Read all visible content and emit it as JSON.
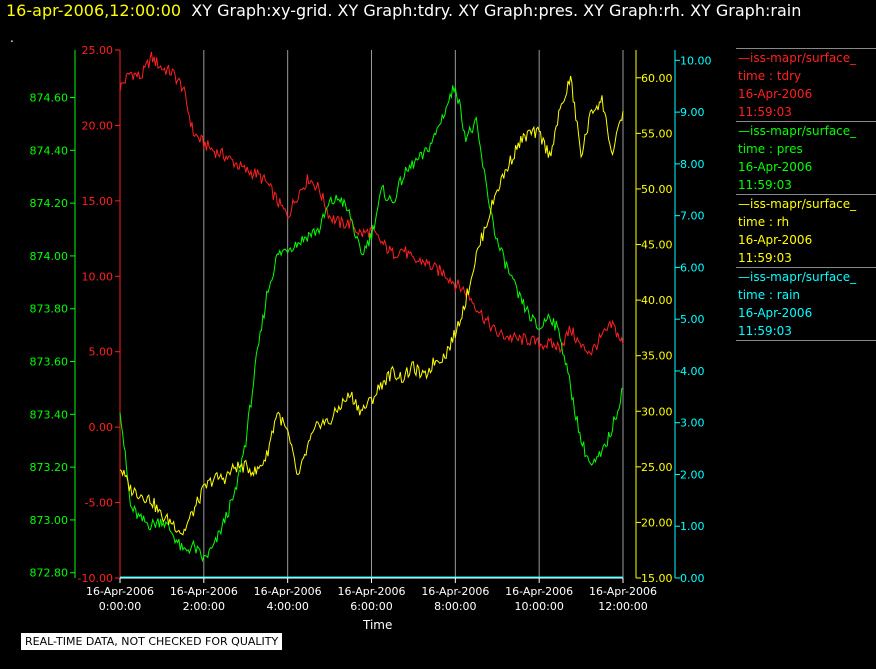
{
  "header": {
    "date": "16-apr-2006,12:00:00",
    "graphs": "XY Graph:xy-grid.  XY Graph:tdry.  XY Graph:pres.  XY Graph:rh.  XY Graph:rain",
    "dot": "."
  },
  "footer": {
    "x_label": "Time",
    "qc_note": "REAL-TIME DATA, NOT CHECKED FOR QUALITY"
  },
  "legend": [
    {
      "name": "—iss-mapr/surface_",
      "field": "time : tdry",
      "date": "16-Apr-2006",
      "time": "11:59:03",
      "color": "#ff2020"
    },
    {
      "name": "—iss-mapr/surface_",
      "field": "time : pres",
      "date": "16-Apr-2006",
      "time": "11:59:03",
      "color": "#00ff00"
    },
    {
      "name": "—iss-mapr/surface_",
      "field": "time : rh",
      "date": "16-Apr-2006",
      "time": "11:59:03",
      "color": "#ffff00"
    },
    {
      "name": "—iss-mapr/surface_",
      "field": "time : rain",
      "date": "16-Apr-2006",
      "time": "11:59:03",
      "color": "#00ffff"
    }
  ],
  "chart_data": {
    "type": "line",
    "xlabel": "Time",
    "x_tick_labels": [
      [
        "16-Apr-2006",
        "0:00:00"
      ],
      [
        "16-Apr-2006",
        "2:00:00"
      ],
      [
        "16-Apr-2006",
        "4:00:00"
      ],
      [
        "16-Apr-2006",
        "6:00:00"
      ],
      [
        "16-Apr-2006",
        "8:00:00"
      ],
      [
        "16-Apr-2006",
        "10:00:00"
      ],
      [
        "16-Apr-2006",
        "12:00:00"
      ]
    ],
    "xlim_hours": [
      0,
      12
    ],
    "grid": "vertical",
    "axes": {
      "tdry": {
        "color": "#ff2020",
        "ylim": [
          -10,
          25
        ],
        "ticks": [
          "25.00",
          "20.00",
          "15.00",
          "10.00",
          "5.00",
          "0.00",
          "-5.00",
          "-10.00"
        ]
      },
      "pres": {
        "color": "#00ff00",
        "ylim": [
          872.78,
          874.78
        ],
        "ticks": [
          "874.60",
          "874.40",
          "874.20",
          "874.00",
          "873.80",
          "873.60",
          "873.40",
          "873.20",
          "873.00",
          "872.80"
        ]
      },
      "rh": {
        "color": "#ffff00",
        "ylim": [
          15,
          62.5
        ],
        "ticks": [
          "60.00",
          "55.00",
          "50.00",
          "45.00",
          "40.00",
          "35.00",
          "30.00",
          "25.00",
          "20.00",
          "15.00"
        ]
      },
      "rain": {
        "color": "#00ffff",
        "ylim": [
          0,
          10.2
        ],
        "ticks": [
          "10.00",
          "9.00",
          "8.00",
          "7.00",
          "6.00",
          "5.00",
          "4.00",
          "3.00",
          "2.00",
          "1.00",
          "0.00"
        ]
      }
    },
    "series": [
      {
        "name": "tdry",
        "axis": "tdry",
        "x": [
          0,
          0.25,
          0.5,
          0.75,
          1.0,
          1.25,
          1.5,
          1.75,
          2.0,
          2.25,
          2.5,
          2.75,
          3.0,
          3.25,
          3.5,
          3.75,
          4.0,
          4.25,
          4.5,
          4.75,
          5.0,
          5.25,
          5.5,
          5.75,
          6.0,
          6.25,
          6.5,
          6.75,
          7.0,
          7.25,
          7.5,
          7.75,
          8.0,
          8.25,
          8.5,
          8.75,
          9.0,
          9.25,
          9.5,
          9.75,
          10.0,
          10.25,
          10.5,
          10.75,
          11.0,
          11.25,
          11.5,
          11.75,
          12.0
        ],
        "y": [
          22.5,
          23.5,
          23.2,
          24.5,
          23.8,
          23.5,
          22.5,
          19.5,
          18.8,
          18.3,
          18.0,
          17.5,
          17.0,
          16.8,
          16.2,
          15.0,
          14.0,
          15.5,
          16.5,
          15.8,
          14.0,
          13.5,
          13.5,
          12.8,
          13.0,
          12.2,
          11.5,
          11.8,
          11.0,
          11.0,
          10.5,
          10.2,
          9.5,
          9.0,
          8.0,
          7.0,
          6.2,
          6.0,
          5.8,
          5.8,
          5.5,
          5.5,
          5.3,
          6.5,
          5.3,
          5.0,
          6.0,
          6.8,
          5.5
        ]
      },
      {
        "name": "pres",
        "axis": "pres",
        "x": [
          0,
          0.25,
          0.5,
          0.75,
          1.0,
          1.25,
          1.5,
          1.75,
          2.0,
          2.25,
          2.5,
          2.75,
          3.0,
          3.25,
          3.5,
          3.75,
          4.0,
          4.25,
          4.5,
          4.75,
          5.0,
          5.25,
          5.5,
          5.75,
          6.0,
          6.25,
          6.5,
          6.75,
          7.0,
          7.25,
          7.5,
          7.75,
          8.0,
          8.25,
          8.5,
          8.75,
          9.0,
          9.25,
          9.5,
          9.75,
          10.0,
          10.25,
          10.5,
          10.75,
          11.0,
          11.25,
          11.5,
          11.75,
          12.0
        ],
        "y": [
          873.43,
          873.05,
          873.0,
          872.98,
          873.0,
          872.95,
          872.88,
          872.9,
          872.85,
          872.9,
          873.0,
          873.1,
          873.3,
          873.6,
          873.85,
          874.0,
          874.03,
          874.05,
          874.08,
          874.1,
          874.2,
          874.22,
          874.15,
          874.0,
          874.08,
          874.25,
          874.2,
          874.3,
          874.35,
          874.38,
          874.45,
          874.55,
          874.65,
          874.45,
          874.5,
          874.25,
          874.05,
          873.95,
          873.85,
          873.78,
          873.72,
          873.78,
          873.7,
          873.5,
          873.3,
          873.2,
          873.25,
          873.35,
          873.5
        ]
      },
      {
        "name": "rh",
        "axis": "rh",
        "x": [
          0,
          0.25,
          0.5,
          0.75,
          1.0,
          1.25,
          1.5,
          1.75,
          2.0,
          2.25,
          2.5,
          2.75,
          3.0,
          3.25,
          3.5,
          3.75,
          4.0,
          4.25,
          4.5,
          4.75,
          5.0,
          5.25,
          5.5,
          5.75,
          6.0,
          6.25,
          6.5,
          6.75,
          7.0,
          7.25,
          7.5,
          7.75,
          8.0,
          8.25,
          8.5,
          8.75,
          9.0,
          9.25,
          9.5,
          9.75,
          10.0,
          10.25,
          10.5,
          10.75,
          11.0,
          11.25,
          11.5,
          11.75,
          12.0
        ],
        "y": [
          25.0,
          23.0,
          22.5,
          22.0,
          20.5,
          20.0,
          19.0,
          21.0,
          23.0,
          24.0,
          24.0,
          25.0,
          25.0,
          24.5,
          26.0,
          30.0,
          28.0,
          24.0,
          27.0,
          29.0,
          29.0,
          30.5,
          31.5,
          30.0,
          31.0,
          32.5,
          33.5,
          33.0,
          34.0,
          33.0,
          34.5,
          35.0,
          37.0,
          40.0,
          44.0,
          47.0,
          50.0,
          52.0,
          54.0,
          55.0,
          55.0,
          53.0,
          57.0,
          60.0,
          53.0,
          57.0,
          58.0,
          53.0,
          57.0
        ]
      },
      {
        "name": "rain",
        "axis": "rain",
        "x": [
          0,
          12
        ],
        "y": [
          0.02,
          0.02
        ]
      }
    ]
  }
}
